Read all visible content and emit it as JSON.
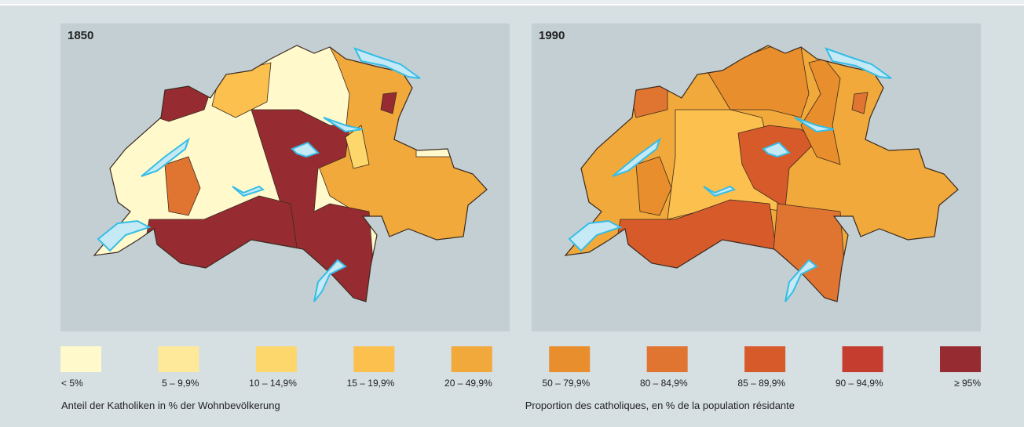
{
  "maps": [
    {
      "title": "1850"
    },
    {
      "title": "1990"
    }
  ],
  "legend": {
    "items": [
      {
        "label": "< 5%",
        "color": "#fff9cc"
      },
      {
        "label": "5 – 9,9%",
        "color": "#fee89a"
      },
      {
        "label": "10 – 14,9%",
        "color": "#fdd76b"
      },
      {
        "label": "15 – 19,9%",
        "color": "#fcc04e"
      },
      {
        "label": "20 – 49,9%",
        "color": "#f0a93a"
      },
      {
        "label": "50 – 79,9%",
        "color": "#e98e2c"
      },
      {
        "label": "80 – 84,9%",
        "color": "#e07531"
      },
      {
        "label": "85 – 89,9%",
        "color": "#d75a2b"
      },
      {
        "label": "90 – 94,9%",
        "color": "#c43d2e"
      },
      {
        "label": "≥ 95%",
        "color": "#962c31"
      }
    ]
  },
  "captions": [
    "Anteil der Katholiken in % der Wohnbevölkerung",
    "Proportion des catholiques, en % de la population résidante"
  ]
}
